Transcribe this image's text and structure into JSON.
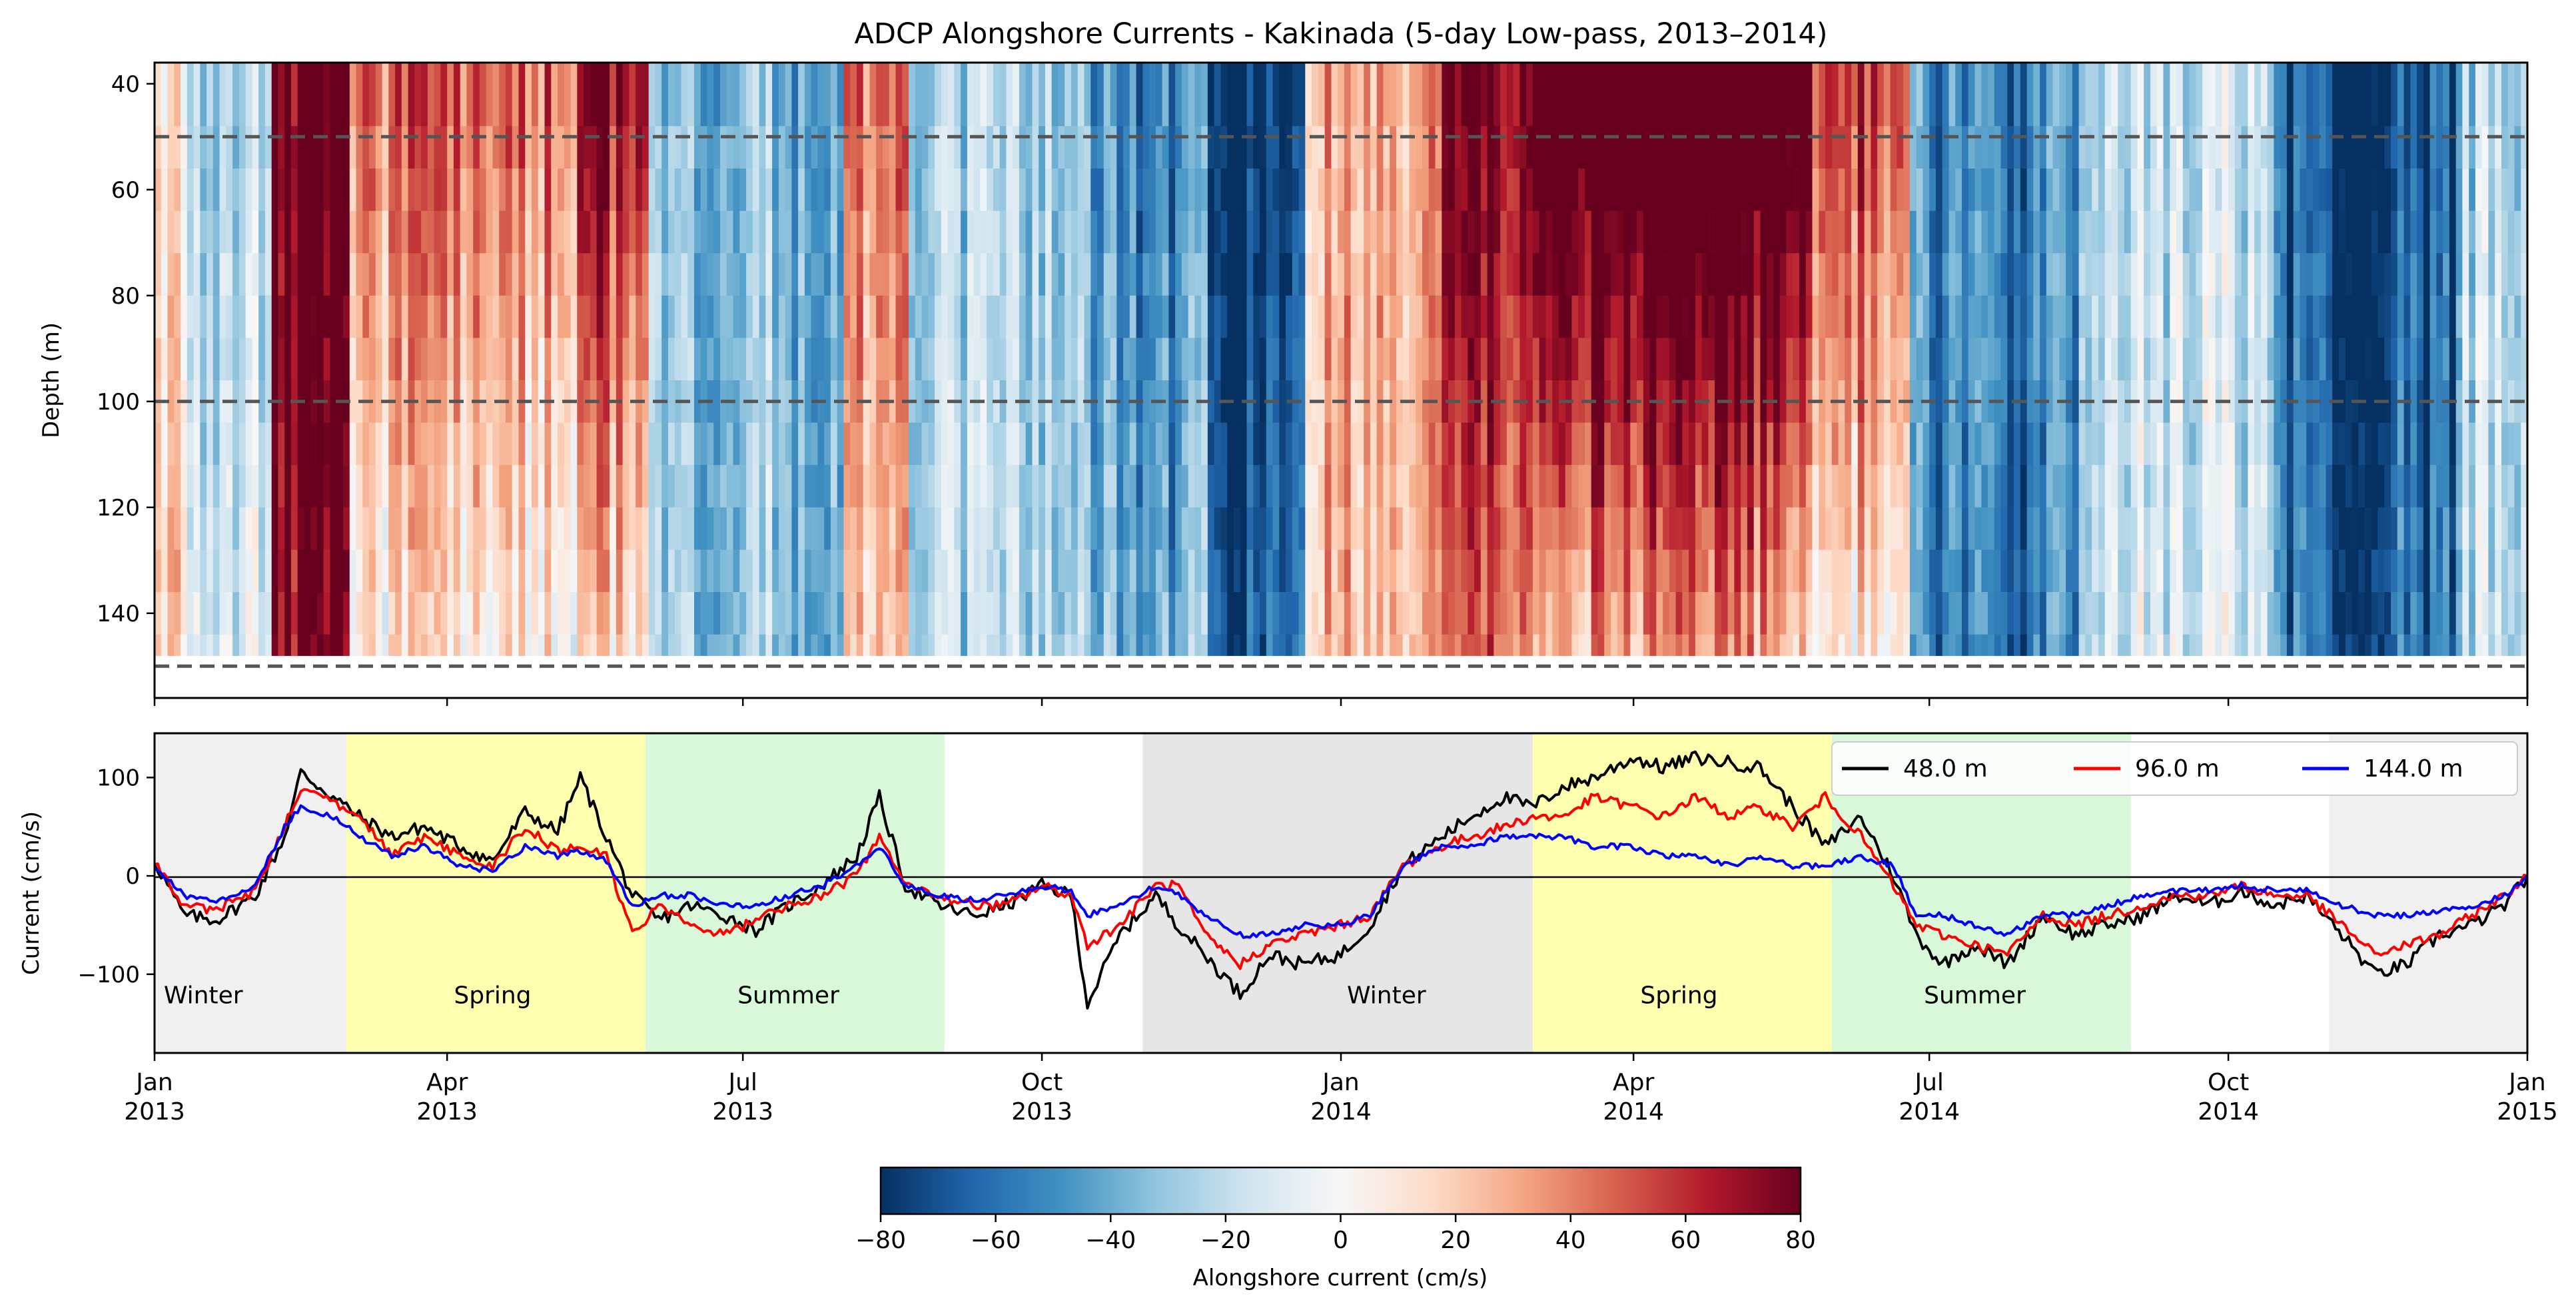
{
  "chart_data": [
    {
      "type": "heatmap",
      "title": "ADCP Alongshore Currents - Kakinada (5-day Low-pass, 2013–2014)",
      "xlabel": "",
      "ylabel": "Depth (m)",
      "x_range": [
        "2013-01-01",
        "2015-01-01"
      ],
      "ylim": [
        156,
        36
      ],
      "y_ticks": [
        "40",
        "60",
        "80",
        "100",
        "120",
        "140"
      ],
      "y_tick_values": [
        40,
        60,
        80,
        100,
        120,
        140
      ],
      "depth_bins_m": [
        40,
        48,
        56,
        64,
        72,
        80,
        88,
        96,
        104,
        112,
        120,
        128,
        136,
        144,
        148
      ],
      "reference_depths_m": [
        50,
        100,
        150
      ],
      "colormap": "RdBu_r",
      "colors": {
        "negative": "#053061",
        "mid": "#f7f7f7",
        "positive": "#67001f",
        "dashed_line": "#555555"
      },
      "regimes": [
        {
          "start": "2013-01-01",
          "end": "2013-01-10",
          "surface": 10,
          "bottom": 18
        },
        {
          "start": "2013-01-10",
          "end": "2013-02-05",
          "surface": -30,
          "bottom": -15
        },
        {
          "start": "2013-02-05",
          "end": "2013-03-01",
          "surface": 85,
          "bottom": 75
        },
        {
          "start": "2013-03-01",
          "end": "2013-05-10",
          "surface": 45,
          "bottom": 5
        },
        {
          "start": "2013-05-10",
          "end": "2013-06-01",
          "surface": 75,
          "bottom": 15
        },
        {
          "start": "2013-06-01",
          "end": "2013-08-01",
          "surface": -35,
          "bottom": -30
        },
        {
          "start": "2013-08-01",
          "end": "2013-08-20",
          "surface": 40,
          "bottom": 15
        },
        {
          "start": "2013-08-20",
          "end": "2013-10-15",
          "surface": -25,
          "bottom": -20
        },
        {
          "start": "2013-10-15",
          "end": "2013-11-20",
          "surface": -55,
          "bottom": -40
        },
        {
          "start": "2013-11-20",
          "end": "2013-12-20",
          "surface": -85,
          "bottom": -70
        },
        {
          "start": "2013-12-20",
          "end": "2014-02-01",
          "surface": 30,
          "bottom": 25
        },
        {
          "start": "2014-02-01",
          "end": "2014-03-01",
          "surface": 75,
          "bottom": 40
        },
        {
          "start": "2014-03-01",
          "end": "2014-05-25",
          "surface": 110,
          "bottom": 30
        },
        {
          "start": "2014-05-25",
          "end": "2014-06-25",
          "surface": 60,
          "bottom": 10
        },
        {
          "start": "2014-06-25",
          "end": "2014-08-15",
          "surface": -50,
          "bottom": -55
        },
        {
          "start": "2014-08-15",
          "end": "2014-10-15",
          "surface": -20,
          "bottom": -15
        },
        {
          "start": "2014-10-15",
          "end": "2014-12-10",
          "surface": -70,
          "bottom": -60
        },
        {
          "start": "2014-12-10",
          "end": "2015-01-01",
          "surface": -25,
          "bottom": -20
        }
      ]
    },
    {
      "type": "line",
      "title": "",
      "xlabel": "",
      "ylabel": "Current (cm/s)",
      "x_range": [
        "2013-01-01",
        "2015-01-01"
      ],
      "ylim": [
        -180,
        145
      ],
      "y_ticks": [
        "−100",
        "0",
        "100"
      ],
      "y_tick_values": [
        -100,
        0,
        100
      ],
      "x_tick_dates": [
        "2013-01-01",
        "2013-04-01",
        "2013-07-01",
        "2013-10-01",
        "2014-01-01",
        "2014-04-01",
        "2014-07-01",
        "2014-10-01",
        "2015-01-01"
      ],
      "x_ticks_month": [
        "Jan",
        "Apr",
        "Jul",
        "Oct",
        "Jan",
        "Apr",
        "Jul",
        "Oct",
        "Jan"
      ],
      "x_ticks_year": [
        "2013",
        "2013",
        "2013",
        "2013",
        "2014",
        "2014",
        "2014",
        "2014",
        "2015"
      ],
      "legend_position": "top-right",
      "season_bands": [
        {
          "label": "Winter",
          "start": "2013-01-01",
          "end": "2013-03-01",
          "color": "#f0f0f0"
        },
        {
          "label": "Spring",
          "start": "2013-03-01",
          "end": "2013-06-01",
          "color": "#ffffb0"
        },
        {
          "label": "Summer",
          "start": "2013-06-01",
          "end": "2013-09-01",
          "color": "#d9f8d9"
        },
        {
          "label": "",
          "start": "2013-11-01",
          "end": "2014-03-01",
          "color": "#e6e6e6"
        },
        {
          "label": "Winter",
          "start": "2014-01-01",
          "end": "2014-01-01",
          "color": ""
        },
        {
          "label": "Spring",
          "start": "2014-03-01",
          "end": "2014-06-01",
          "color": "#ffffb0"
        },
        {
          "label": "Summer",
          "start": "2014-06-01",
          "end": "2014-09-01",
          "color": "#d9f8d9"
        },
        {
          "label": "",
          "start": "2014-11-01",
          "end": "2015-01-01",
          "color": "#f0f0f0"
        }
      ],
      "season_labels": [
        {
          "text": "Winter",
          "date": "2013-01-16"
        },
        {
          "text": "Spring",
          "date": "2013-04-15"
        },
        {
          "text": "Summer",
          "date": "2013-07-15"
        },
        {
          "text": "Winter",
          "date": "2014-01-15"
        },
        {
          "text": "Spring",
          "date": "2014-04-15"
        },
        {
          "text": "Summer",
          "date": "2014-07-15"
        }
      ],
      "series": [
        {
          "name": "48.0 m",
          "color": "#000000",
          "x": [
            "2013-01-01",
            "2013-01-10",
            "2013-01-20",
            "2013-02-01",
            "2013-02-10",
            "2013-02-15",
            "2013-02-25",
            "2013-03-05",
            "2013-03-15",
            "2013-03-25",
            "2013-04-05",
            "2013-04-15",
            "2013-04-25",
            "2013-05-05",
            "2013-05-12",
            "2013-05-20",
            "2013-05-28",
            "2013-06-05",
            "2013-06-15",
            "2013-06-25",
            "2013-07-05",
            "2013-07-15",
            "2013-07-25",
            "2013-08-05",
            "2013-08-12",
            "2013-08-20",
            "2013-08-30",
            "2013-09-10",
            "2013-09-20",
            "2013-10-01",
            "2013-10-10",
            "2013-10-15",
            "2013-10-25",
            "2013-11-05",
            "2013-11-12",
            "2013-11-20",
            "2013-12-01",
            "2013-12-10",
            "2013-12-20",
            "2014-01-01",
            "2014-01-10",
            "2014-01-20",
            "2014-02-01",
            "2014-02-10",
            "2014-02-20",
            "2014-03-01",
            "2014-03-10",
            "2014-03-20",
            "2014-04-01",
            "2014-04-10",
            "2014-04-20",
            "2014-05-01",
            "2014-05-10",
            "2014-05-20",
            "2014-05-30",
            "2014-06-10",
            "2014-06-20",
            "2014-06-27",
            "2014-07-05",
            "2014-07-15",
            "2014-07-25",
            "2014-08-05",
            "2014-08-15",
            "2014-08-25",
            "2014-09-05",
            "2014-09-15",
            "2014-09-25",
            "2014-10-05",
            "2014-10-15",
            "2014-10-25",
            "2014-11-05",
            "2014-11-15",
            "2014-11-25",
            "2014-12-05",
            "2014-12-15",
            "2014-12-25",
            "2015-01-01"
          ],
          "y": [
            15,
            -40,
            -45,
            -20,
            40,
            105,
            80,
            60,
            40,
            50,
            30,
            15,
            65,
            45,
            100,
            40,
            -20,
            -45,
            -30,
            -40,
            -55,
            -30,
            -10,
            20,
            80,
            -10,
            -30,
            -40,
            -30,
            -10,
            -20,
            -130,
            -60,
            -20,
            -50,
            -80,
            -120,
            -80,
            -90,
            -80,
            -50,
            10,
            40,
            60,
            80,
            70,
            90,
            100,
            120,
            110,
            120,
            115,
            110,
            70,
            30,
            60,
            0,
            -60,
            -90,
            -70,
            -90,
            -40,
            -60,
            -50,
            -40,
            -20,
            -30,
            -15,
            -30,
            -20,
            -60,
            -100,
            -90,
            -60,
            -50,
            -30,
            0
          ]
        },
        {
          "name": "96.0 m",
          "color": "#ff0000",
          "x": [
            "2013-01-01",
            "2013-01-10",
            "2013-01-20",
            "2013-02-01",
            "2013-02-10",
            "2013-02-15",
            "2013-02-25",
            "2013-03-05",
            "2013-03-15",
            "2013-03-25",
            "2013-04-05",
            "2013-04-15",
            "2013-04-25",
            "2013-05-05",
            "2013-05-12",
            "2013-05-20",
            "2013-05-28",
            "2013-06-05",
            "2013-06-15",
            "2013-06-25",
            "2013-07-05",
            "2013-07-15",
            "2013-07-25",
            "2013-08-05",
            "2013-08-12",
            "2013-08-20",
            "2013-08-30",
            "2013-09-10",
            "2013-09-20",
            "2013-10-01",
            "2013-10-10",
            "2013-10-15",
            "2013-10-25",
            "2013-11-05",
            "2013-11-12",
            "2013-11-20",
            "2013-12-01",
            "2013-12-10",
            "2013-12-20",
            "2014-01-01",
            "2014-01-10",
            "2014-01-20",
            "2014-02-01",
            "2014-02-10",
            "2014-02-20",
            "2014-03-01",
            "2014-03-10",
            "2014-03-20",
            "2014-04-01",
            "2014-04-10",
            "2014-04-20",
            "2014-05-01",
            "2014-05-10",
            "2014-05-20",
            "2014-05-30",
            "2014-06-10",
            "2014-06-20",
            "2014-06-27",
            "2014-07-05",
            "2014-07-15",
            "2014-07-25",
            "2014-08-05",
            "2014-08-15",
            "2014-08-25",
            "2014-09-05",
            "2014-09-15",
            "2014-09-25",
            "2014-10-05",
            "2014-10-15",
            "2014-10-25",
            "2014-11-05",
            "2014-11-15",
            "2014-11-25",
            "2014-12-05",
            "2014-12-15",
            "2014-12-25",
            "2015-01-01"
          ],
          "y": [
            15,
            -30,
            -35,
            -15,
            50,
            90,
            75,
            60,
            20,
            40,
            20,
            10,
            50,
            25,
            30,
            20,
            -60,
            -30,
            -50,
            -60,
            -45,
            -30,
            -20,
            0,
            40,
            -10,
            -20,
            -30,
            -30,
            -10,
            -20,
            -70,
            -50,
            -10,
            -10,
            -60,
            -90,
            -70,
            -60,
            -50,
            -40,
            10,
            30,
            40,
            50,
            60,
            60,
            80,
            70,
            60,
            80,
            60,
            70,
            50,
            80,
            40,
            -10,
            -50,
            -60,
            -70,
            -80,
            -40,
            -50,
            -40,
            -30,
            -20,
            -20,
            -10,
            -20,
            -20,
            -50,
            -80,
            -70,
            -60,
            -40,
            -20,
            0
          ]
        },
        {
          "name": "144.0 m",
          "color": "#0000ff",
          "x": [
            "2013-01-01",
            "2013-01-10",
            "2013-01-20",
            "2013-02-01",
            "2013-02-10",
            "2013-02-15",
            "2013-02-25",
            "2013-03-05",
            "2013-03-15",
            "2013-03-25",
            "2013-04-05",
            "2013-04-15",
            "2013-04-25",
            "2013-05-05",
            "2013-05-12",
            "2013-05-20",
            "2013-05-28",
            "2013-06-05",
            "2013-06-15",
            "2013-06-25",
            "2013-07-05",
            "2013-07-15",
            "2013-07-25",
            "2013-08-05",
            "2013-08-12",
            "2013-08-20",
            "2013-08-30",
            "2013-09-10",
            "2013-09-20",
            "2013-10-01",
            "2013-10-10",
            "2013-10-15",
            "2013-10-25",
            "2013-11-05",
            "2013-11-12",
            "2013-11-20",
            "2013-12-01",
            "2013-12-10",
            "2013-12-20",
            "2014-01-01",
            "2014-01-10",
            "2014-01-20",
            "2014-02-01",
            "2014-02-10",
            "2014-02-20",
            "2014-03-01",
            "2014-03-10",
            "2014-03-20",
            "2014-04-01",
            "2014-04-10",
            "2014-04-20",
            "2014-05-01",
            "2014-05-10",
            "2014-05-20",
            "2014-05-30",
            "2014-06-10",
            "2014-06-20",
            "2014-06-27",
            "2014-07-05",
            "2014-07-15",
            "2014-07-25",
            "2014-08-05",
            "2014-08-15",
            "2014-08-25",
            "2014-09-05",
            "2014-09-15",
            "2014-09-25",
            "2014-10-05",
            "2014-10-15",
            "2014-10-25",
            "2014-11-05",
            "2014-11-15",
            "2014-11-25",
            "2014-12-05",
            "2014-12-15",
            "2014-12-25",
            "2015-01-01"
          ],
          "y": [
            10,
            -20,
            -25,
            -10,
            50,
            70,
            60,
            40,
            20,
            30,
            10,
            5,
            30,
            20,
            25,
            15,
            -30,
            -20,
            -20,
            -30,
            -30,
            -20,
            -10,
            10,
            30,
            -10,
            -20,
            -25,
            -20,
            -10,
            -15,
            -40,
            -30,
            -10,
            -20,
            -40,
            -60,
            -60,
            -50,
            -50,
            -40,
            10,
            30,
            30,
            40,
            40,
            40,
            30,
            30,
            20,
            20,
            10,
            20,
            10,
            10,
            20,
            10,
            -40,
            -40,
            -50,
            -60,
            -40,
            -40,
            -30,
            -20,
            -15,
            -15,
            -10,
            -15,
            -15,
            -30,
            -40,
            -40,
            -35,
            -30,
            -20,
            0
          ]
        }
      ]
    },
    {
      "type": "colorbar",
      "label": "Alongshore current (cm/s)",
      "range": [
        -80,
        80
      ],
      "ticks": [
        "−80",
        "−60",
        "−40",
        "−20",
        "0",
        "20",
        "40",
        "60",
        "80"
      ],
      "tick_values": [
        -80,
        -60,
        -40,
        -20,
        0,
        20,
        40,
        60,
        80
      ]
    }
  ]
}
